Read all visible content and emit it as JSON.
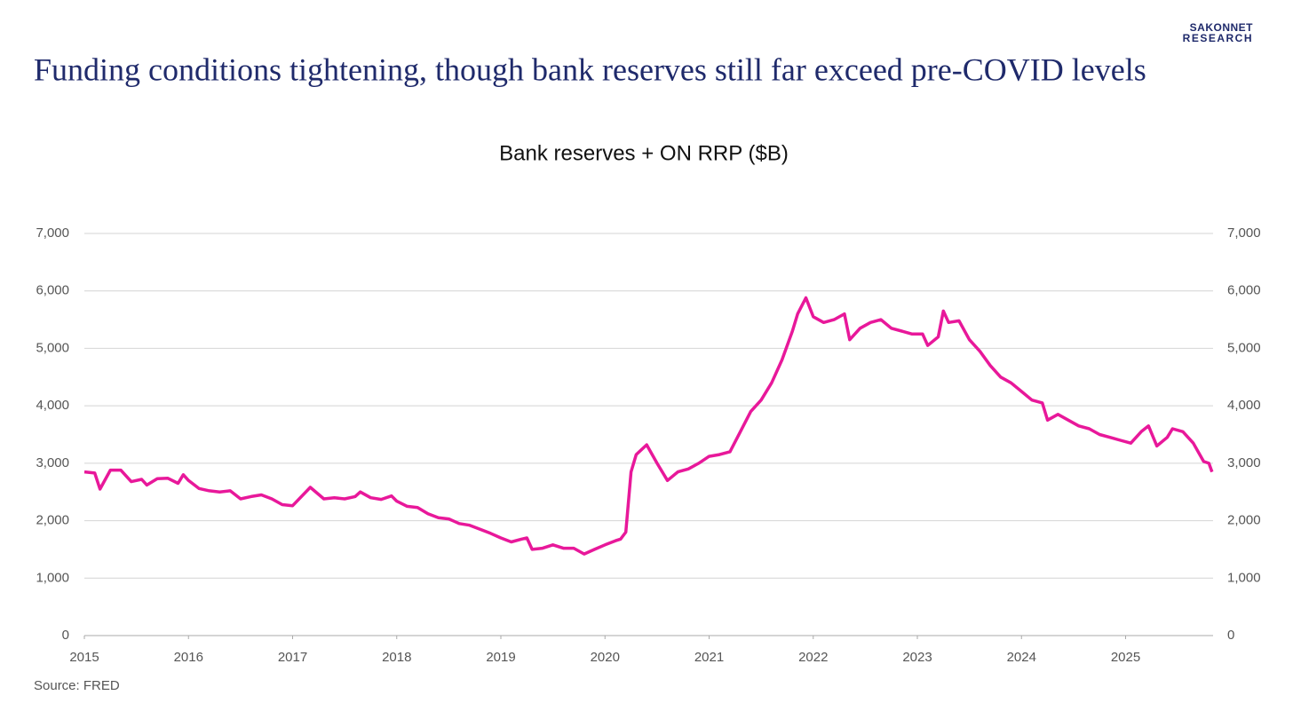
{
  "logo": {
    "line1": "SAKONNET",
    "line2": "RESEARCH"
  },
  "chart_data": {
    "type": "line",
    "title": "Funding conditions tightening, though bank reserves still far exceed pre-COVID levels",
    "subtitle": "Bank reserves + ON RRP ($B)",
    "source": "Source: FRED",
    "x": [
      2015.0,
      2015.1,
      2015.15,
      2015.25,
      2015.35,
      2015.45,
      2015.55,
      2015.6,
      2015.7,
      2015.8,
      2015.9,
      2015.95,
      2016.0,
      2016.1,
      2016.2,
      2016.3,
      2016.4,
      2016.5,
      2016.6,
      2016.7,
      2016.8,
      2016.9,
      2017.0,
      2017.17,
      2017.3,
      2017.4,
      2017.5,
      2017.6,
      2017.65,
      2017.75,
      2017.85,
      2017.95,
      2018.0,
      2018.1,
      2018.2,
      2018.3,
      2018.4,
      2018.5,
      2018.6,
      2018.7,
      2018.8,
      2018.9,
      2019.0,
      2019.1,
      2019.2,
      2019.25,
      2019.3,
      2019.4,
      2019.5,
      2019.6,
      2019.7,
      2019.8,
      2019.9,
      2020.0,
      2020.1,
      2020.15,
      2020.2,
      2020.25,
      2020.3,
      2020.4,
      2020.5,
      2020.6,
      2020.7,
      2020.8,
      2020.9,
      2021.0,
      2021.1,
      2021.2,
      2021.3,
      2021.4,
      2021.5,
      2021.6,
      2021.7,
      2021.8,
      2021.85,
      2021.93,
      2022.0,
      2022.1,
      2022.2,
      2022.3,
      2022.35,
      2022.45,
      2022.55,
      2022.65,
      2022.75,
      2022.85,
      2022.95,
      2023.05,
      2023.1,
      2023.2,
      2023.25,
      2023.3,
      2023.4,
      2023.5,
      2023.6,
      2023.7,
      2023.8,
      2023.9,
      2024.0,
      2024.1,
      2024.2,
      2024.25,
      2024.35,
      2024.45,
      2024.55,
      2024.65,
      2024.75,
      2024.85,
      2024.95,
      2025.05,
      2025.15,
      2025.22,
      2025.3,
      2025.4,
      2025.45,
      2025.55,
      2025.65,
      2025.75,
      2025.8,
      2025.83
    ],
    "series": [
      {
        "color": "#e8189a",
        "values": [
          2850,
          2830,
          2550,
          2880,
          2880,
          2680,
          2720,
          2620,
          2730,
          2740,
          2650,
          2800,
          2700,
          2560,
          2520,
          2500,
          2520,
          2380,
          2420,
          2450,
          2380,
          2280,
          2260,
          2580,
          2380,
          2400,
          2380,
          2420,
          2500,
          2400,
          2370,
          2430,
          2340,
          2250,
          2230,
          2120,
          2050,
          2030,
          1950,
          1920,
          1850,
          1780,
          1700,
          1630,
          1680,
          1700,
          1500,
          1520,
          1580,
          1520,
          1520,
          1420,
          1500,
          1580,
          1650,
          1680,
          1800,
          2850,
          3150,
          3320,
          3000,
          2700,
          2850,
          2900,
          3000,
          3120,
          3150,
          3200,
          3550,
          3900,
          4100,
          4400,
          4800,
          5300,
          5600,
          5880,
          5550,
          5450,
          5500,
          5600,
          5150,
          5350,
          5450,
          5500,
          5350,
          5300,
          5250,
          5250,
          5050,
          5200,
          5650,
          5450,
          5480,
          5150,
          4950,
          4700,
          4500,
          4400,
          4250,
          4100,
          4050,
          3750,
          3850,
          3750,
          3650,
          3600,
          3500,
          3450,
          3400,
          3350,
          3550,
          3650,
          3300,
          3450,
          3600,
          3550,
          3350,
          3030,
          3000,
          2850
        ]
      }
    ],
    "xlim": [
      2015,
      2025.84
    ],
    "xticks": [
      2015,
      2016,
      2017,
      2018,
      2019,
      2020,
      2021,
      2022,
      2023,
      2024,
      2025
    ],
    "ylim": [
      0,
      7000
    ],
    "yticks": [
      0,
      {
        "value": 1000,
        "label": "1,000"
      },
      {
        "value": 2000,
        "label": "2,000"
      },
      {
        "value": 3000,
        "label": "3,000"
      },
      {
        "value": 4000,
        "label": "4,000"
      },
      {
        "value": 5000,
        "label": "5,000"
      },
      {
        "value": 6000,
        "label": "6,000"
      },
      {
        "value": 7000,
        "label": "7,000"
      }
    ],
    "y2lim": [
      0,
      7000
    ],
    "y2ticks": [
      0,
      {
        "value": 1000,
        "label": "1,000"
      },
      {
        "value": 2000,
        "label": "2,000"
      },
      {
        "value": 3000,
        "label": "3,000"
      },
      {
        "value": 4000,
        "label": "4,000"
      },
      {
        "value": 5000,
        "label": "5,000"
      },
      {
        "value": 6000,
        "label": "6,000"
      },
      {
        "value": 7000,
        "label": "7,000"
      }
    ],
    "grid": true
  }
}
